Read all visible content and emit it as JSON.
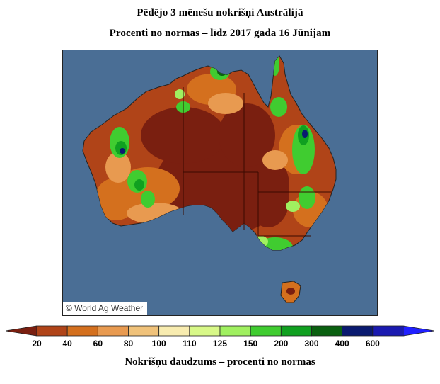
{
  "title": "Pēdējo 3 mēnešu nokrišņi Austrālijā",
  "subtitle": "Procenti no normas – līdz 2017 gada 16 Jūnijam",
  "credit": "© World Ag Weather",
  "legend": {
    "title": "Nokrišņu daudzums – procenti no normas",
    "ticks": [
      "20",
      "40",
      "60",
      "80",
      "100",
      "110",
      "125",
      "150",
      "200",
      "300",
      "400",
      "600"
    ],
    "colors": [
      "#7a1f10",
      "#b04418",
      "#d4701e",
      "#e89a50",
      "#f0c27a",
      "#f8ecb0",
      "#d8f888",
      "#a0f060",
      "#40cc30",
      "#10a020",
      "#0a6010",
      "#0a1a70",
      "#1a1ab0",
      "#2020ff"
    ]
  },
  "colors": {
    "ocean": "#4a6e95",
    "land_dry": "#7a1f10",
    "land_mid": "#b04418",
    "land_orange": "#d4701e",
    "land_light": "#e89a50",
    "wet_green": "#40cc30",
    "wet_dark": "#10a020",
    "very_wet": "#0a1a70"
  }
}
